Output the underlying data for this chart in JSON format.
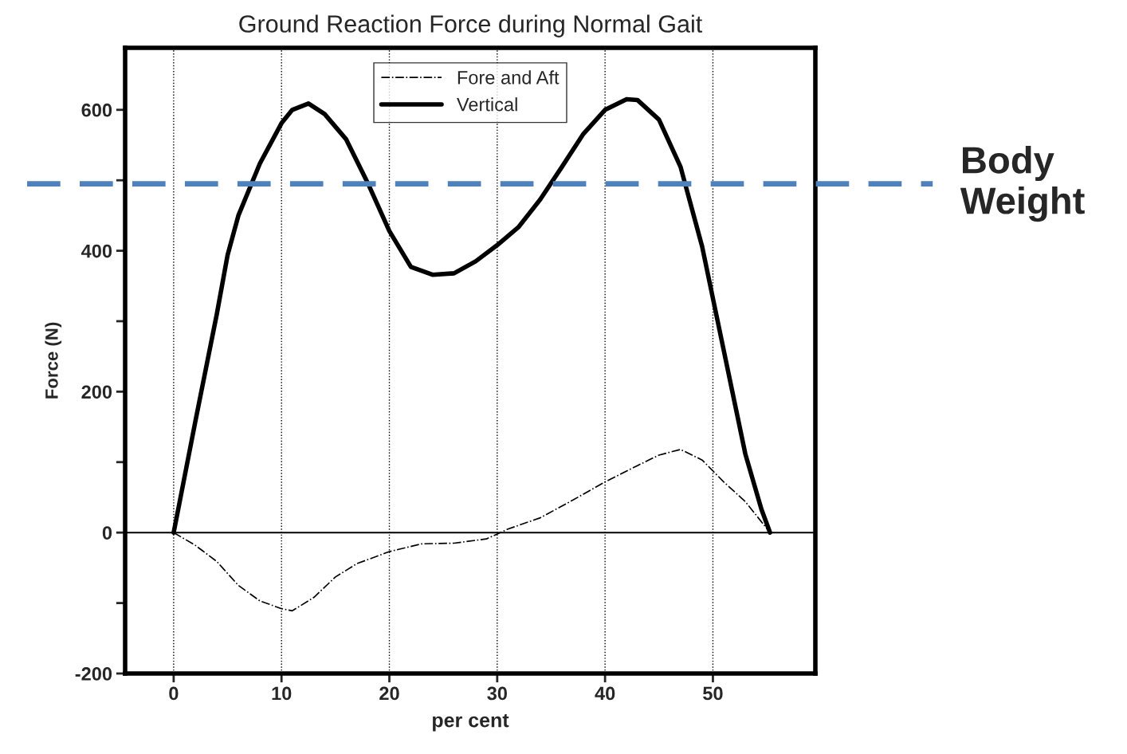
{
  "chart_data": {
    "type": "line",
    "title": "Ground Reaction Force during Normal Gait",
    "xlabel": "per cent",
    "ylabel": "Force (N)",
    "xlim": [
      -4.5,
      59.5
    ],
    "ylim": [
      -200,
      688
    ],
    "xticks": [
      0,
      10,
      20,
      30,
      40,
      50
    ],
    "yticks": [
      -200,
      {
        "value": -100,
        "label": null
      },
      0,
      {
        "value": 100,
        "label": null
      },
      200,
      {
        "value": 300,
        "label": null
      },
      400,
      {
        "value": 500,
        "label": null
      },
      600
    ],
    "grid": "x",
    "legend": "top",
    "series": [
      {
        "name": "Fore and Aft",
        "color": "#000000",
        "line_style": "dashdot",
        "x": [
          0,
          2,
          4,
          6,
          8,
          10,
          11,
          13,
          15,
          17,
          20,
          23,
          26,
          29,
          31,
          34,
          37,
          40,
          43,
          45,
          47,
          49,
          51,
          53,
          55.3
        ],
        "values": [
          0,
          -18,
          -41,
          -75,
          -97,
          -108,
          -111,
          -92,
          -63,
          -44,
          -27,
          -16,
          -15,
          -9,
          5,
          21,
          46,
          72,
          95,
          110,
          118,
          103,
          72,
          44,
          0
        ]
      },
      {
        "name": "Vertical",
        "color": "#000000",
        "line_style": "solid",
        "x": [
          0,
          2,
          4,
          5,
          6,
          8,
          10,
          11,
          12.5,
          14,
          16,
          18,
          20,
          22,
          24,
          26,
          28,
          30,
          32,
          34,
          36,
          38,
          40,
          42,
          43,
          45,
          47,
          49,
          51,
          53,
          54.5,
          55.3
        ],
        "values": [
          0,
          157,
          310,
          394,
          450,
          524,
          581,
          600,
          609,
          594,
          558,
          496,
          428,
          377,
          366,
          368,
          385,
          408,
          434,
          473,
          519,
          566,
          600,
          615,
          614,
          586,
          519,
          406,
          259,
          112,
          33,
          0
        ]
      }
    ],
    "ref_lines": [
      {
        "axis": "y",
        "value": 0,
        "color": "#000000",
        "line_style": "solid"
      },
      {
        "axis": "y",
        "value": 495,
        "label": "Body Weight",
        "color": "#4f81bd",
        "line_style": "dashed"
      }
    ]
  }
}
